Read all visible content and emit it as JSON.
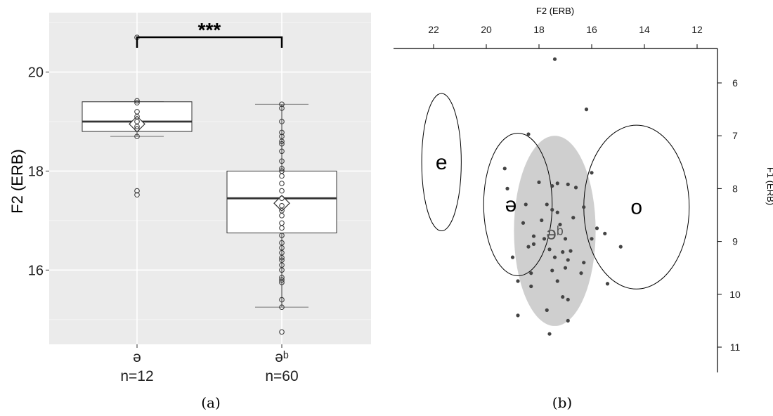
{
  "chart_data": [
    {
      "type": "box",
      "panel_label": "(a)",
      "ylabel": "F2 (ERB)",
      "ylim": [
        14.5,
        21.2
      ],
      "yticks": [
        16,
        18,
        20
      ],
      "grid": true,
      "significance": "***",
      "categories": [
        "ə",
        "əᵇ"
      ],
      "counts": [
        "n=12",
        "n=60"
      ],
      "boxes": [
        {
          "whisker_low": 18.7,
          "q1": 18.8,
          "median": 19.0,
          "q3": 19.4,
          "whisker_high": 19.4,
          "mean": 18.95,
          "points": [
            20.7,
            19.42,
            19.38,
            19.2,
            19.1,
            19.0,
            18.9,
            18.85,
            18.7,
            17.6,
            17.52
          ]
        },
        {
          "whisker_low": 15.25,
          "q1": 16.75,
          "median": 17.45,
          "q3": 18.0,
          "whisker_high": 19.35,
          "mean": 17.35,
          "points": [
            19.35,
            19.27,
            19.0,
            18.78,
            18.7,
            18.6,
            18.55,
            18.4,
            18.2,
            18.05,
            18.0,
            17.9,
            17.75,
            17.6,
            17.45,
            17.3,
            17.2,
            17.1,
            16.95,
            16.85,
            16.7,
            16.55,
            16.45,
            16.35,
            16.25,
            16.2,
            16.1,
            16.0,
            15.85,
            15.8,
            15.75,
            15.4,
            15.25,
            14.75
          ]
        }
      ]
    },
    {
      "type": "scatter",
      "panel_label": "(b)",
      "xlabel": "F2 (ERB)",
      "ylabel": "F1 (ERB)",
      "x_axis_position": "top",
      "y_axis_position": "right",
      "x_reversed": true,
      "y_reversed": true,
      "xlim": [
        23.3,
        11.6
      ],
      "ylim": [
        5.0,
        11.5
      ],
      "xticks": [
        22,
        20,
        18,
        16,
        14,
        12
      ],
      "yticks": [
        6,
        7,
        8,
        9,
        10,
        11
      ],
      "ellipses": [
        {
          "label": "e",
          "cx": 21.7,
          "cy": 7.5,
          "rx": 0.75,
          "ry": 1.3,
          "filled": false
        },
        {
          "label": "ə",
          "cx": 18.8,
          "cy": 8.3,
          "rx": 1.3,
          "ry": 1.35,
          "filled": false
        },
        {
          "label": "o",
          "cx": 14.3,
          "cy": 8.35,
          "rx": 2.0,
          "ry": 1.55,
          "filled": false
        },
        {
          "label": "əᵇ",
          "cx": 17.4,
          "cy": 8.8,
          "rx": 1.55,
          "ry": 1.8,
          "filled": true
        }
      ],
      "points": [
        [
          17.4,
          5.55
        ],
        [
          16.2,
          6.5
        ],
        [
          18.4,
          6.97
        ],
        [
          19.3,
          7.62
        ],
        [
          16.0,
          7.7
        ],
        [
          19.2,
          8.0
        ],
        [
          18.0,
          7.88
        ],
        [
          17.5,
          7.95
        ],
        [
          17.3,
          7.9
        ],
        [
          16.9,
          7.92
        ],
        [
          16.6,
          7.98
        ],
        [
          18.5,
          8.3
        ],
        [
          17.7,
          8.3
        ],
        [
          17.5,
          8.4
        ],
        [
          17.3,
          8.45
        ],
        [
          16.3,
          8.35
        ],
        [
          18.6,
          8.65
        ],
        [
          17.9,
          8.6
        ],
        [
          17.2,
          8.68
        ],
        [
          16.7,
          8.55
        ],
        [
          15.8,
          8.75
        ],
        [
          15.5,
          8.85
        ],
        [
          18.2,
          8.9
        ],
        [
          17.8,
          8.95
        ],
        [
          17.0,
          8.95
        ],
        [
          16.0,
          8.95
        ],
        [
          18.4,
          9.1
        ],
        [
          18.2,
          9.05
        ],
        [
          17.6,
          9.15
        ],
        [
          17.1,
          9.2
        ],
        [
          16.8,
          9.18
        ],
        [
          14.9,
          9.1
        ],
        [
          19.0,
          9.3
        ],
        [
          17.4,
          9.3
        ],
        [
          16.9,
          9.35
        ],
        [
          16.3,
          9.4
        ],
        [
          17.5,
          9.55
        ],
        [
          17.0,
          9.5
        ],
        [
          18.8,
          9.75
        ],
        [
          18.3,
          9.6
        ],
        [
          17.3,
          9.75
        ],
        [
          16.4,
          9.6
        ],
        [
          15.4,
          9.8
        ],
        [
          18.3,
          9.85
        ],
        [
          17.1,
          10.05
        ],
        [
          16.9,
          10.1
        ],
        [
          18.8,
          10.4
        ],
        [
          17.7,
          10.3
        ],
        [
          16.9,
          10.5
        ],
        [
          17.6,
          10.75
        ]
      ]
    }
  ]
}
